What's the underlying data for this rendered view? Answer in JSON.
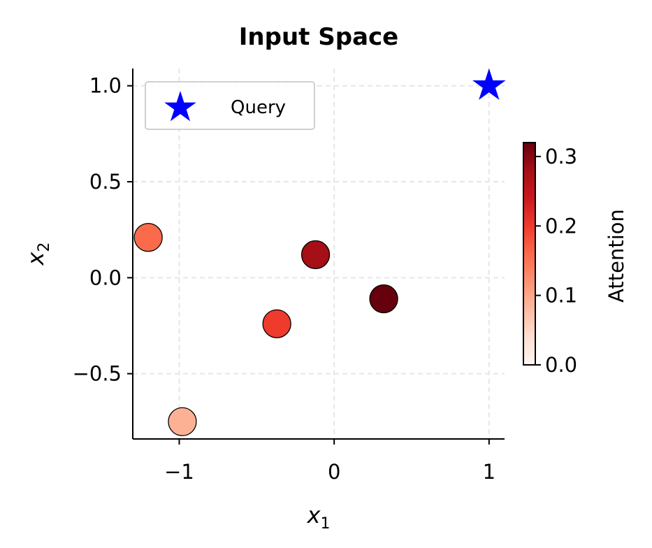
{
  "chart_data": {
    "type": "scatter",
    "title": "Input Space",
    "xlabel": "x1",
    "ylabel": "x2",
    "xlim": [
      -1.3,
      1.1
    ],
    "ylim": [
      -0.84,
      1.09
    ],
    "xticks": [
      -1,
      0,
      1
    ],
    "xtick_labels": [
      "−1",
      "0",
      "1"
    ],
    "yticks": [
      -0.5,
      0.0,
      0.5,
      1.0
    ],
    "ytick_labels": [
      "−0.5",
      "0.0",
      "0.5",
      "1.0"
    ],
    "grid": true,
    "legend": {
      "position": "top-left",
      "entries": [
        {
          "label": "Query",
          "marker": "star",
          "color": "#0000ff"
        }
      ]
    },
    "query": {
      "x": 1.0,
      "y": 1.0,
      "color": "#0000ff"
    },
    "points": [
      {
        "x": -1.2,
        "y": 0.21,
        "attention": 0.16
      },
      {
        "x": -0.98,
        "y": -0.75,
        "attention": 0.09
      },
      {
        "x": -0.37,
        "y": -0.24,
        "attention": 0.2
      },
      {
        "x": -0.12,
        "y": 0.12,
        "attention": 0.28
      },
      {
        "x": 0.32,
        "y": -0.11,
        "attention": 0.32
      }
    ],
    "colorbar": {
      "label": "Attention",
      "colormap": "Reds",
      "vmin": 0.0,
      "vmax": 0.32,
      "ticks": [
        0.0,
        0.1,
        0.2,
        0.3
      ],
      "tick_labels": [
        "0.0",
        "0.1",
        "0.2",
        "0.3"
      ]
    }
  }
}
